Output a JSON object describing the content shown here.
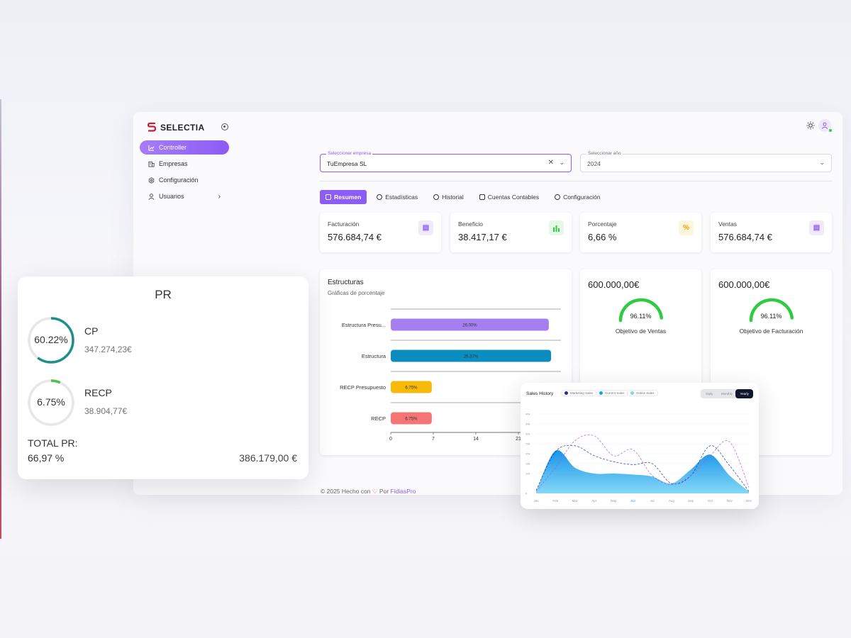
{
  "brand": {
    "name": "SELECTIA",
    "accent": "#8b5cf6"
  },
  "sidebar": {
    "items": [
      {
        "label": "Controller",
        "icon": "chart-line-icon",
        "active": true
      },
      {
        "label": "Empresas",
        "icon": "buildings-icon"
      },
      {
        "label": "Configuración",
        "icon": "gear-icon"
      },
      {
        "label": "Usuarios",
        "icon": "user-icon",
        "has_submenu": true
      }
    ]
  },
  "filters": {
    "empresa": {
      "label": "Seleccionar empresa",
      "value": "TuEmpresa SL"
    },
    "anio": {
      "label": "Seleccionar año",
      "value": "2024"
    }
  },
  "tabs": [
    {
      "label": "Resumen",
      "active": true
    },
    {
      "label": "Estadísticas"
    },
    {
      "label": "Historial"
    },
    {
      "label": "Cuentas Contables"
    },
    {
      "label": "Configuración"
    }
  ],
  "stats": [
    {
      "label": "Facturación",
      "value": "576.684,74 €",
      "icon": "document-icon",
      "icon_color": "#8b5cf6",
      "icon_bg": "#f1eafd"
    },
    {
      "label": "Beneficio",
      "value": "38.417,17 €",
      "icon": "bar-chart-icon",
      "icon_color": "#2ecc40",
      "icon_bg": "#e6f9e8"
    },
    {
      "label": "Porcentaje",
      "value": "6,66 %",
      "icon": "percent-icon",
      "icon_color": "#e0a400",
      "icon_bg": "#fdf6dc"
    },
    {
      "label": "Ventas",
      "value": "576.684,74 €",
      "icon": "document-icon",
      "icon_color": "#8b5cf6",
      "icon_bg": "#f1eafd"
    }
  ],
  "estructuras": {
    "title": "Estructuras",
    "subtitle": "Gráficas de porcentaje"
  },
  "gauges": [
    {
      "amount": "600.000,00€",
      "pct_label": "96.11%",
      "value": 96.11,
      "caption": "Objetivo de Ventas",
      "color": "#2ecc40"
    },
    {
      "amount": "600.000,00€",
      "pct_label": "96.11%",
      "value": 96.11,
      "caption": "Objetivo de Facturación",
      "color": "#2ecc40"
    }
  ],
  "footer": {
    "prefix": "© 2025 Hecho con",
    "by": "Por",
    "brand": "FidiasPro"
  },
  "pr": {
    "title": "PR",
    "items": [
      {
        "name": "CP",
        "pct_label": "60.22%",
        "value": 60.22,
        "amount": "347.274,23€",
        "color": "#1f8f8a"
      },
      {
        "name": "RECP",
        "pct_label": "6.75%",
        "value": 6.75,
        "amount": "38.904,77€",
        "color": "#4cc44c"
      }
    ],
    "total_label": "TOTAL PR:",
    "total_pct": "66,97 %",
    "total_amount": "386.179,00 €"
  },
  "sales": {
    "title": "Sales History",
    "legend": [
      {
        "label": "Marketing Sales",
        "color": "#1f2f9f"
      },
      {
        "label": "Current Sales",
        "color": "#0ea5e9"
      },
      {
        "label": "Online Sales",
        "color": "#7dd3fc"
      }
    ],
    "periods": [
      {
        "label": "Daily"
      },
      {
        "label": "Monthly"
      },
      {
        "label": "Yearly",
        "active": true
      }
    ]
  },
  "chart_data": [
    {
      "type": "bar",
      "orientation": "horizontal",
      "categories": [
        "Estructura Presu...",
        "Estructura",
        "RECP Presupuesto",
        "RECP"
      ],
      "values": [
        26.0,
        26.37,
        6.75,
        6.75
      ],
      "data_labels": [
        "26.00%",
        "26.37%",
        "6.75%",
        "6.75%"
      ],
      "colors": [
        "#a57ef0",
        "#0b8dc0",
        "#f7b90a",
        "#f57575"
      ],
      "x_ticks": [
        "0",
        "7",
        "14",
        "21"
      ],
      "xlim": [
        0,
        28
      ],
      "grid": true
    },
    {
      "type": "area",
      "title": "Sales History",
      "categories": [
        "Jan",
        "Feb",
        "Mar",
        "Apr",
        "May",
        "Jun",
        "Jul",
        "Aug",
        "Sep",
        "Oct",
        "Nov",
        "Dec"
      ],
      "y_ticks": [
        "0",
        "10k",
        "15k",
        "20k",
        "25k",
        "30k",
        "35k",
        "40k"
      ],
      "ylim": [
        0,
        40000
      ],
      "highlight_category": "Jun",
      "series": [
        {
          "name": "Marketing Sales",
          "values": [
            1500,
            21000,
            24000,
            19000,
            16000,
            14500,
            15000,
            5000,
            9000,
            24000,
            14000,
            1000
          ],
          "style": "dashed",
          "color": "#1f2f9f"
        },
        {
          "name": "Current Sales",
          "values": [
            1000,
            21500,
            13000,
            10000,
            10000,
            9500,
            8500,
            5000,
            12000,
            19500,
            9000,
            1000
          ],
          "style": "area",
          "color": "#0ea5e9"
        },
        {
          "name": "Online Sales",
          "values": [
            1000,
            13000,
            26500,
            29000,
            19000,
            22000,
            9000,
            4500,
            9000,
            19000,
            26000,
            3000
          ],
          "style": "dashed",
          "color": "#b15bd6"
        }
      ]
    }
  ]
}
